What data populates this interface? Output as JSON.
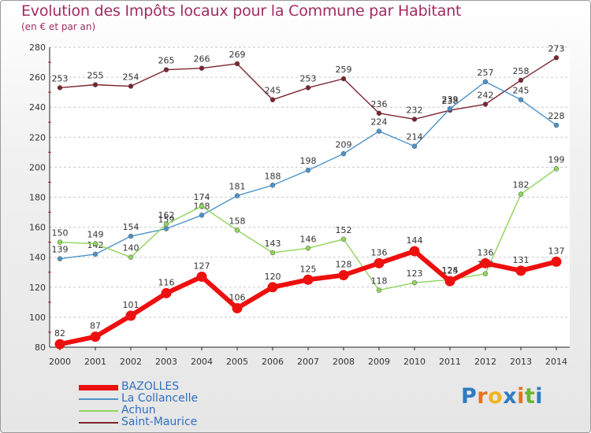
{
  "title": "Evolution des Impôts locaux pour la Commune par Habitant",
  "subtitle": "(en € et par an)",
  "logo": {
    "letters": [
      "P",
      "r",
      "o",
      "x",
      "i",
      "t",
      "i"
    ],
    "colors": [
      "#2f7cc1",
      "#e8731a",
      "#f0b51e",
      "#2f7cc1",
      "#e8731a",
      "#6cb52d",
      "#2f7cc1"
    ]
  },
  "chart_data": {
    "type": "line",
    "title": "Evolution des Impôts locaux pour la Commune par Habitant",
    "subtitle": "(en € et par an)",
    "x": [
      "2000",
      "2001",
      "2002",
      "2003",
      "2004",
      "2005",
      "2006",
      "2007",
      "2008",
      "2009",
      "2010",
      "2011",
      "2012",
      "2013",
      "2014"
    ],
    "ylim": [
      80,
      280
    ],
    "yticks": [
      80,
      100,
      120,
      140,
      160,
      180,
      200,
      220,
      240,
      260,
      280
    ],
    "grid": "horizontal dashed",
    "legend_position": "bottom-left",
    "series": [
      {
        "name": "Saint-Maurice",
        "color": "#7b2430",
        "values": [
          253,
          255,
          254,
          265,
          266,
          269,
          245,
          253,
          259,
          236,
          232,
          238,
          242,
          258,
          273
        ]
      },
      {
        "name": "La Collancelle",
        "color": "#4d93c9",
        "values": [
          139,
          142,
          154,
          159,
          168,
          181,
          188,
          198,
          209,
          224,
          214,
          239,
          257,
          245,
          228
        ]
      },
      {
        "name": "Achun",
        "color": "#8fd45a",
        "values": [
          150,
          149,
          140,
          162,
          174,
          158,
          143,
          146,
          152,
          118,
          123,
          125,
          129,
          182,
          199
        ]
      },
      {
        "name": "BAZOLLES",
        "color": "#ee0f0f",
        "values": [
          82,
          87,
          101,
          116,
          127,
          106,
          120,
          125,
          128,
          136,
          144,
          124,
          136,
          131,
          137
        ]
      }
    ],
    "legend": [
      "BAZOLLES",
      "La Collancelle",
      "Achun",
      "Saint-Maurice"
    ]
  }
}
